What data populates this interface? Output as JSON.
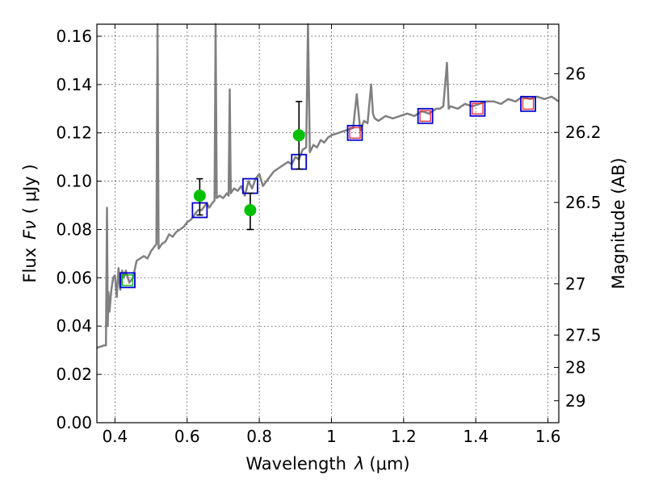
{
  "chart_data": {
    "type": "line",
    "xlabel": "Wavelength",
    "xlabel_symbol": "λ",
    "xlabel_unit": "(μm)",
    "ylabel": "Flux",
    "ylabel_symbol": "Fν",
    "ylabel_unit": "( μJy )",
    "y2label": "Magnitude (AB)",
    "xlim": [
      0.35,
      1.63
    ],
    "ylim": [
      0.0,
      0.165
    ],
    "grid": true,
    "x_ticks": [
      0.4,
      0.6,
      0.8,
      1.0,
      1.2,
      1.4,
      1.6
    ],
    "x_tick_labels": [
      "0.4",
      "0.6",
      "0.8",
      "1",
      "1.2",
      "1.4",
      "1.6"
    ],
    "y_ticks": [
      0.0,
      0.02,
      0.04,
      0.06,
      0.08,
      0.1,
      0.12,
      0.14,
      0.16
    ],
    "y_tick_labels": [
      "0.00",
      "0.02",
      "0.04",
      "0.06",
      "0.08",
      "0.10",
      "0.12",
      "0.14",
      "0.16"
    ],
    "y2_ticks": [
      {
        "label": "26",
        "flux": 0.1445
      },
      {
        "label": "26.2",
        "flux": 0.1202
      },
      {
        "label": "26.5",
        "flux": 0.0912
      },
      {
        "label": "27",
        "flux": 0.0575
      },
      {
        "label": "27.5",
        "flux": 0.0363
      },
      {
        "label": "28",
        "flux": 0.0229
      },
      {
        "label": "29",
        "flux": 0.0091
      }
    ],
    "spectrum": {
      "color": "#808080",
      "x": [
        0.35,
        0.37,
        0.375,
        0.378,
        0.38,
        0.382,
        0.385,
        0.39,
        0.395,
        0.4,
        0.405,
        0.41,
        0.415,
        0.42,
        0.425,
        0.43,
        0.44,
        0.45,
        0.46,
        0.47,
        0.48,
        0.49,
        0.5,
        0.51,
        0.515,
        0.518,
        0.521,
        0.53,
        0.54,
        0.55,
        0.56,
        0.57,
        0.58,
        0.59,
        0.6,
        0.61,
        0.62,
        0.63,
        0.64,
        0.65,
        0.655,
        0.658,
        0.661,
        0.67,
        0.676,
        0.679,
        0.682,
        0.69,
        0.7,
        0.71,
        0.715,
        0.718,
        0.721,
        0.73,
        0.74,
        0.75,
        0.76,
        0.77,
        0.78,
        0.79,
        0.8,
        0.81,
        0.82,
        0.83,
        0.84,
        0.85,
        0.86,
        0.87,
        0.88,
        0.89,
        0.9,
        0.91,
        0.92,
        0.93,
        0.935,
        0.94,
        0.95,
        0.96,
        0.97,
        0.98,
        0.99,
        1.0,
        1.02,
        1.04,
        1.06,
        1.07,
        1.08,
        1.09,
        1.1,
        1.11,
        1.115,
        1.12,
        1.13,
        1.15,
        1.17,
        1.19,
        1.21,
        1.23,
        1.25,
        1.27,
        1.29,
        1.3,
        1.31,
        1.32,
        1.325,
        1.33,
        1.35,
        1.37,
        1.39,
        1.41,
        1.43,
        1.45,
        1.47,
        1.49,
        1.51,
        1.53,
        1.55,
        1.57,
        1.59,
        1.61,
        1.63
      ],
      "y": [
        0.031,
        0.032,
        0.032,
        0.089,
        0.04,
        0.054,
        0.046,
        0.055,
        0.06,
        0.061,
        0.052,
        0.064,
        0.055,
        0.063,
        0.06,
        0.063,
        0.058,
        0.06,
        0.067,
        0.068,
        0.069,
        0.068,
        0.071,
        0.073,
        0.074,
        0.165,
        0.072,
        0.074,
        0.075,
        0.078,
        0.077,
        0.079,
        0.08,
        0.081,
        0.083,
        0.084,
        0.086,
        0.088,
        0.088,
        0.09,
        0.091,
        0.09,
        0.089,
        0.091,
        0.092,
        0.165,
        0.093,
        0.094,
        0.093,
        0.095,
        0.094,
        0.138,
        0.095,
        0.097,
        0.096,
        0.098,
        0.094,
        0.1,
        0.097,
        0.101,
        0.103,
        0.098,
        0.1,
        0.102,
        0.104,
        0.105,
        0.106,
        0.107,
        0.108,
        0.107,
        0.11,
        0.109,
        0.113,
        0.114,
        0.165,
        0.112,
        0.115,
        0.114,
        0.117,
        0.116,
        0.118,
        0.119,
        0.12,
        0.121,
        0.122,
        0.136,
        0.121,
        0.125,
        0.124,
        0.14,
        0.128,
        0.126,
        0.125,
        0.127,
        0.126,
        0.127,
        0.128,
        0.127,
        0.129,
        0.128,
        0.13,
        0.13,
        0.131,
        0.149,
        0.13,
        0.131,
        0.13,
        0.132,
        0.131,
        0.132,
        0.133,
        0.133,
        0.132,
        0.134,
        0.133,
        0.135,
        0.134,
        0.135,
        0.134,
        0.135,
        0.133
      ]
    },
    "squares_blue": {
      "color": "#0000cc",
      "x": [
        0.435,
        0.635,
        0.775,
        0.91,
        1.065,
        1.26,
        1.405,
        1.545
      ],
      "y": [
        0.059,
        0.088,
        0.098,
        0.108,
        0.12,
        0.127,
        0.13,
        0.132
      ]
    },
    "squares_red": {
      "color": "#e8253a",
      "x": [
        1.065,
        1.26,
        1.405,
        1.545
      ],
      "y": [
        0.12,
        0.127,
        0.13,
        0.132
      ]
    },
    "squares_green": {
      "color": "#00b000",
      "x": [
        0.435
      ],
      "y": [
        0.059
      ]
    },
    "observed": {
      "color": "#00c000",
      "x": [
        0.635,
        0.775,
        0.91
      ],
      "y": [
        0.094,
        0.088,
        0.119
      ],
      "err_low": [
        0.086,
        0.08,
        0.105
      ],
      "err_high": [
        0.101,
        0.095,
        0.133
      ]
    }
  }
}
